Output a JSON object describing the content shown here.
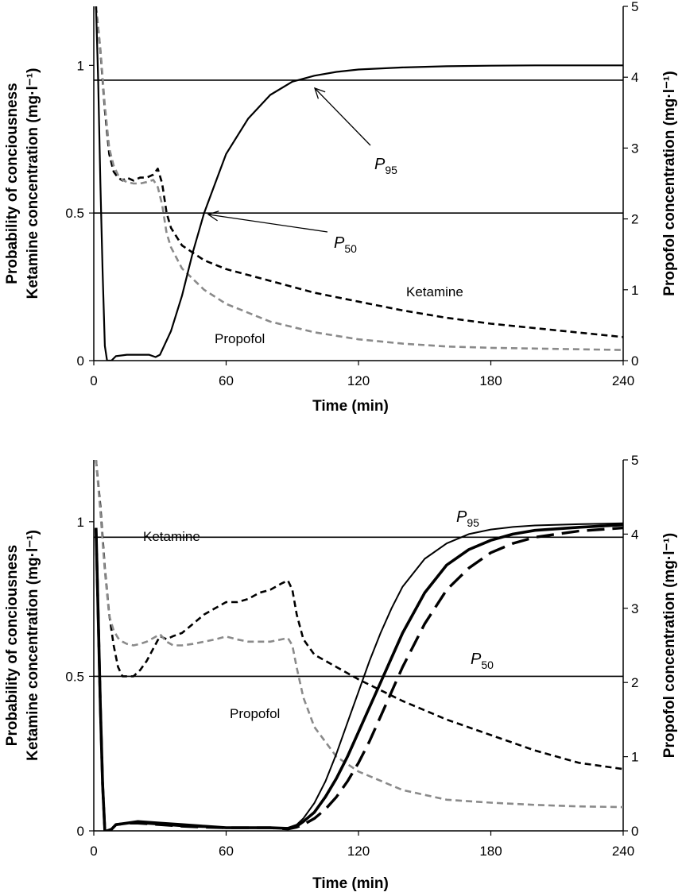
{
  "chart_data": [
    {
      "type": "line",
      "xlabel": "Time (min)",
      "ylabel_left_line1": "Probability of conciousness",
      "ylabel_left_line2": "Ketamine concentration (mg·l⁻¹)",
      "ylabel_right": "Propofol concentration (mg·l⁻¹)",
      "xlim": [
        0,
        240
      ],
      "ylim_left": [
        0,
        1.2
      ],
      "ylim_right": [
        0,
        5
      ],
      "x_ticks": [
        "0",
        "60",
        "120",
        "180",
        "240"
      ],
      "y_left_ticks": [
        "0",
        "0.5",
        "1"
      ],
      "y_right_ticks": [
        "0",
        "1",
        "2",
        "3",
        "4",
        "5"
      ],
      "reference_lines": [
        {
          "label": "P95",
          "y": 0.95
        },
        {
          "label": "P50",
          "y": 0.5
        }
      ],
      "annotations": {
        "p95_main": "P",
        "p95_sub": "95",
        "p50_main": "P",
        "p50_sub": "50",
        "ketamine": "Ketamine",
        "propofol": "Propofol"
      },
      "series": [
        {
          "name": "Ketamine",
          "axis": "left",
          "color": "#000000",
          "style": "dashed",
          "x": [
            1,
            3,
            5,
            7,
            9,
            11,
            13,
            15,
            18,
            21,
            24,
            27,
            29,
            31,
            33,
            35,
            40,
            50,
            60,
            80,
            100,
            120,
            140,
            160,
            180,
            200,
            220,
            240
          ],
          "y": [
            1.2,
            1.05,
            0.85,
            0.7,
            0.64,
            0.62,
            0.61,
            0.62,
            0.61,
            0.62,
            0.62,
            0.63,
            0.65,
            0.6,
            0.5,
            0.45,
            0.39,
            0.34,
            0.31,
            0.27,
            0.23,
            0.2,
            0.17,
            0.145,
            0.125,
            0.11,
            0.095,
            0.08
          ]
        },
        {
          "name": "Propofol",
          "axis": "right",
          "color": "#8a8a8a",
          "style": "dashed",
          "x": [
            1,
            3,
            5,
            7,
            9,
            11,
            13,
            15,
            18,
            21,
            24,
            27,
            29,
            31,
            33,
            35,
            40,
            50,
            60,
            80,
            100,
            120,
            140,
            160,
            180,
            200,
            220,
            240
          ],
          "y": [
            5.0,
            4.4,
            3.6,
            3.0,
            2.75,
            2.62,
            2.55,
            2.52,
            2.5,
            2.5,
            2.52,
            2.55,
            2.45,
            2.2,
            1.8,
            1.6,
            1.3,
            1.0,
            0.8,
            0.55,
            0.4,
            0.3,
            0.24,
            0.2,
            0.18,
            0.17,
            0.16,
            0.15
          ]
        },
        {
          "name": "Probability of consciousness",
          "axis": "left",
          "color": "#000000",
          "style": "solid",
          "x": [
            1,
            2,
            3,
            4,
            5,
            6,
            8,
            10,
            15,
            20,
            25,
            28,
            30,
            35,
            40,
            45,
            50,
            55,
            60,
            70,
            80,
            90,
            100,
            110,
            120,
            140,
            160,
            180,
            200,
            220,
            240
          ],
          "y": [
            1.2,
            0.95,
            0.6,
            0.3,
            0.05,
            0.0,
            0.0,
            0.015,
            0.02,
            0.02,
            0.02,
            0.012,
            0.02,
            0.1,
            0.22,
            0.37,
            0.5,
            0.6,
            0.7,
            0.82,
            0.9,
            0.945,
            0.965,
            0.978,
            0.986,
            0.993,
            0.997,
            0.999,
            1.0,
            1.0,
            1.0
          ]
        }
      ]
    },
    {
      "type": "line",
      "xlabel": "Time (min)",
      "ylabel_left_line1": "Probability of conciousness",
      "ylabel_left_line2": "Ketamine concentration (mg·l⁻¹)",
      "ylabel_right": "Propofol concentration (mg·l⁻¹)",
      "xlim": [
        0,
        240
      ],
      "ylim_left": [
        0,
        1.2
      ],
      "ylim_right": [
        0,
        5
      ],
      "x_ticks": [
        "0",
        "60",
        "120",
        "180",
        "240"
      ],
      "y_left_ticks": [
        "0",
        "0.5",
        "1"
      ],
      "y_right_ticks": [
        "0",
        "1",
        "2",
        "3",
        "4",
        "5"
      ],
      "reference_lines": [
        {
          "label": "P95",
          "y": 0.95
        },
        {
          "label": "P50",
          "y": 0.5
        }
      ],
      "annotations": {
        "p95_main": "P",
        "p95_sub": "95",
        "p50_main": "P",
        "p50_sub": "50",
        "ketamine": "Ketamine",
        "propofol": "Propofol"
      },
      "series": [
        {
          "name": "Ketamine",
          "axis": "left",
          "color": "#000000",
          "style": "dashed",
          "x": [
            1,
            3,
            5,
            7,
            9,
            11,
            13,
            15,
            18,
            21,
            24,
            27,
            30,
            33,
            36,
            40,
            45,
            50,
            55,
            60,
            65,
            70,
            75,
            80,
            85,
            88,
            90,
            92,
            95,
            100,
            110,
            120,
            140,
            160,
            180,
            200,
            220,
            240
          ],
          "y": [
            1.2,
            1.05,
            0.85,
            0.7,
            0.6,
            0.53,
            0.5,
            0.5,
            0.5,
            0.52,
            0.55,
            0.59,
            0.63,
            0.62,
            0.63,
            0.64,
            0.67,
            0.7,
            0.72,
            0.74,
            0.74,
            0.75,
            0.77,
            0.78,
            0.8,
            0.81,
            0.78,
            0.7,
            0.62,
            0.57,
            0.53,
            0.49,
            0.42,
            0.36,
            0.31,
            0.26,
            0.22,
            0.2
          ]
        },
        {
          "name": "Propofol",
          "axis": "right",
          "color": "#8a8a8a",
          "style": "dashed",
          "x": [
            1,
            3,
            5,
            7,
            9,
            11,
            13,
            15,
            18,
            21,
            24,
            27,
            30,
            33,
            36,
            40,
            45,
            50,
            55,
            60,
            65,
            70,
            75,
            80,
            85,
            88,
            90,
            92,
            95,
            100,
            110,
            120,
            140,
            160,
            180,
            200,
            220,
            240
          ],
          "y": [
            5.0,
            4.3,
            3.5,
            2.9,
            2.7,
            2.6,
            2.55,
            2.52,
            2.5,
            2.52,
            2.55,
            2.6,
            2.65,
            2.55,
            2.5,
            2.5,
            2.52,
            2.55,
            2.58,
            2.62,
            2.58,
            2.55,
            2.55,
            2.55,
            2.58,
            2.6,
            2.5,
            2.2,
            1.8,
            1.4,
            1.0,
            0.8,
            0.55,
            0.42,
            0.38,
            0.35,
            0.33,
            0.32
          ]
        },
        {
          "name": "Probability of consciousness A",
          "axis": "left",
          "color": "#000000",
          "style": "solid-thin",
          "x": [
            1,
            2,
            3,
            4,
            5,
            6,
            8,
            10,
            15,
            20,
            30,
            40,
            50,
            60,
            70,
            80,
            88,
            92,
            95,
            100,
            105,
            110,
            115,
            120,
            125,
            130,
            135,
            140,
            150,
            160,
            170,
            180,
            190,
            200,
            220,
            240
          ],
          "y": [
            0.98,
            0.7,
            0.4,
            0.15,
            0.0,
            0.0,
            0.005,
            0.02,
            0.025,
            0.025,
            0.02,
            0.015,
            0.012,
            0.01,
            0.01,
            0.01,
            0.01,
            0.02,
            0.04,
            0.09,
            0.16,
            0.25,
            0.35,
            0.45,
            0.55,
            0.64,
            0.72,
            0.79,
            0.88,
            0.93,
            0.96,
            0.975,
            0.983,
            0.988,
            0.992,
            0.995
          ]
        },
        {
          "name": "Probability of consciousness B",
          "axis": "left",
          "color": "#000000",
          "style": "solid-thick",
          "x": [
            1,
            2,
            3,
            4,
            5,
            6,
            8,
            10,
            15,
            20,
            30,
            40,
            50,
            60,
            70,
            80,
            88,
            92,
            95,
            100,
            105,
            110,
            115,
            120,
            125,
            130,
            135,
            140,
            150,
            160,
            170,
            180,
            190,
            200,
            220,
            240
          ],
          "y": [
            0.98,
            0.7,
            0.4,
            0.15,
            0.0,
            0.0,
            0.005,
            0.02,
            0.025,
            0.03,
            0.025,
            0.02,
            0.015,
            0.01,
            0.01,
            0.01,
            0.008,
            0.015,
            0.03,
            0.06,
            0.11,
            0.17,
            0.24,
            0.32,
            0.4,
            0.48,
            0.56,
            0.64,
            0.77,
            0.86,
            0.91,
            0.94,
            0.96,
            0.972,
            0.982,
            0.99
          ]
        },
        {
          "name": "Probability of consciousness C",
          "axis": "left",
          "color": "#000000",
          "style": "long-dash",
          "x": [
            1,
            2,
            3,
            4,
            5,
            6,
            8,
            10,
            15,
            20,
            30,
            40,
            50,
            60,
            70,
            80,
            88,
            92,
            95,
            100,
            105,
            110,
            115,
            120,
            125,
            130,
            135,
            140,
            150,
            160,
            170,
            180,
            190,
            200,
            220,
            240
          ],
          "y": [
            0.98,
            0.7,
            0.4,
            0.15,
            0.0,
            0.0,
            0.005,
            0.02,
            0.025,
            0.025,
            0.02,
            0.015,
            0.012,
            0.01,
            0.01,
            0.01,
            0.006,
            0.012,
            0.02,
            0.04,
            0.07,
            0.11,
            0.16,
            0.22,
            0.29,
            0.37,
            0.45,
            0.53,
            0.67,
            0.78,
            0.85,
            0.9,
            0.93,
            0.95,
            0.97,
            0.98
          ]
        }
      ]
    }
  ]
}
